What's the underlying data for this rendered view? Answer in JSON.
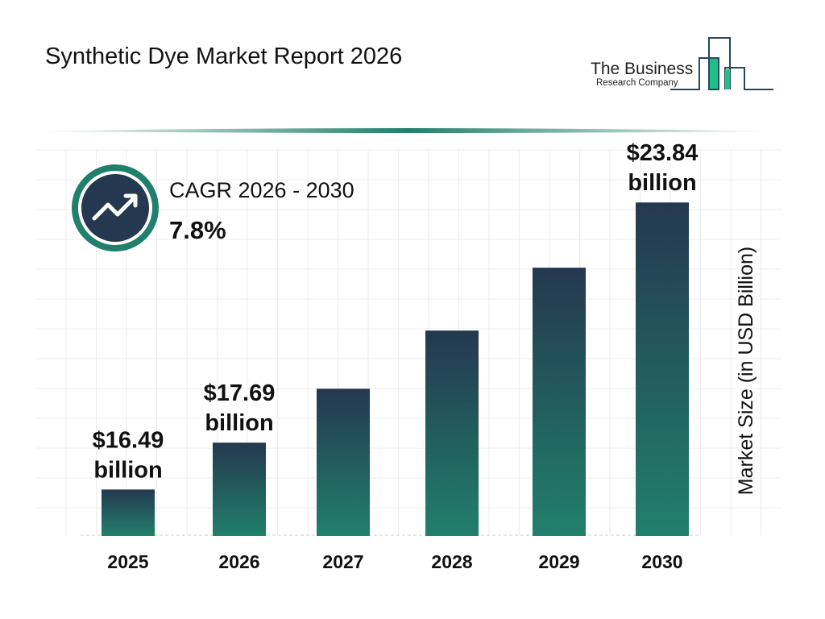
{
  "header": {
    "title": "Synthetic Dye Market Report 2026"
  },
  "logo": {
    "line1": "The Business",
    "line2": "Research Company"
  },
  "cagr": {
    "label": "CAGR 2026 - 2030",
    "value": "7.8%",
    "icon": "trend-up-arrow-icon"
  },
  "colors": {
    "bar_top": "#24384f",
    "bar_bottom": "#21806b",
    "accent": "#21806b",
    "icon_bg": "#24384f",
    "logo_green": "#1fbf8a"
  },
  "chart_data": {
    "type": "bar",
    "categories": [
      "2025",
      "2026",
      "2027",
      "2028",
      "2029",
      "2030"
    ],
    "values": [
      16.49,
      17.69,
      19.07,
      20.56,
      22.17,
      23.84
    ],
    "data_labels": [
      [
        "$16.49",
        "billion"
      ],
      [
        "$17.69",
        "billion"
      ],
      null,
      null,
      null,
      [
        "$23.84",
        "billion"
      ]
    ],
    "ylabel": "Market Size (in USD Billion)",
    "xlabel": "",
    "grid": true,
    "y_axis_visible": false
  }
}
